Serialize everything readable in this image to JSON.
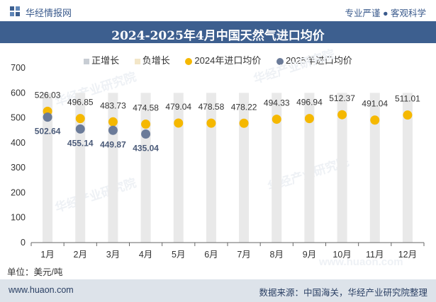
{
  "header": {
    "brand": "华经情报网",
    "tagline": "专业严谨 ● 客观科学"
  },
  "title": "2024-2025年4月中国天然气进口均价",
  "legend": [
    {
      "label": "正增长",
      "color": "#c8cdd4",
      "shape": "bar"
    },
    {
      "label": "负增长",
      "color": "#f3e6c8",
      "shape": "bar"
    },
    {
      "label": "2024年进口均价",
      "color": "#f5b800",
      "shape": "dot"
    },
    {
      "label": "2025年进口均价",
      "color": "#6b7b99",
      "shape": "dot"
    }
  ],
  "unit": "单位：美元/吨",
  "footer": {
    "site": "www.huaon.com",
    "source": "数据来源：中国海关，华经产业研究院整理"
  },
  "watermarks": [
    "华经产业研究院",
    "华经产业研究院",
    "华经产业研究院",
    "华经产业研究院",
    "www.huaon.com"
  ],
  "chart_data": {
    "type": "scatter",
    "categories": [
      "1月",
      "2月",
      "3月",
      "4月",
      "5月",
      "6月",
      "7月",
      "8月",
      "9月",
      "10月",
      "11月",
      "12月"
    ],
    "ylim": [
      0,
      700
    ],
    "yticks": [
      0,
      100,
      200,
      300,
      400,
      500,
      600,
      700
    ],
    "series": [
      {
        "name": "2024年进口均价",
        "color": "#f5b800",
        "values": [
          526.03,
          496.85,
          483.73,
          474.58,
          479.04,
          478.58,
          478.22,
          494.33,
          496.94,
          512.37,
          491.04,
          511.01
        ]
      },
      {
        "name": "2025年进口均价",
        "color": "#6b7b99",
        "values": [
          502.64,
          455.14,
          449.87,
          435.04
        ]
      }
    ],
    "background_bars": {
      "value": 600,
      "color": "#e9e9e9"
    }
  }
}
